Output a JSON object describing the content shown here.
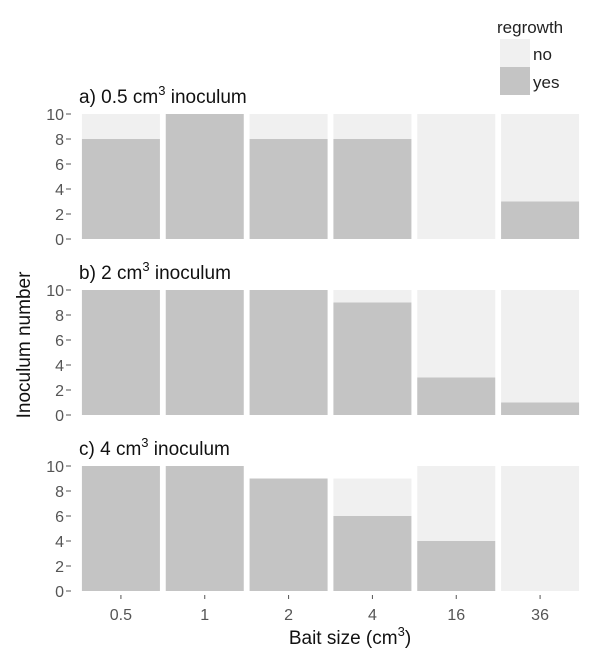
{
  "chart_data": {
    "type": "bar",
    "stacked": true,
    "xlabel_main": "Bait size (cm",
    "xlabel_sup": "3",
    "xlabel_end": ")",
    "ylabel": "Inoculum number",
    "categories": [
      "0.5",
      "1",
      "2",
      "4",
      "16",
      "36"
    ],
    "ylim": [
      0,
      10
    ],
    "yticks": [
      "0",
      "2",
      "4",
      "6",
      "8",
      "10"
    ],
    "legend": {
      "title": "regrowth",
      "position": "top-right",
      "entries": [
        {
          "label": "no",
          "color": "#f0f0f0"
        },
        {
          "label": "yes",
          "color": "#c4c4c4"
        }
      ]
    },
    "panels": [
      {
        "title_pre": "a) 0.5 cm",
        "title_sup": "3",
        "title_post": " inoculum",
        "series": [
          {
            "name": "yes",
            "values": [
              8,
              10,
              8,
              8,
              0,
              3
            ]
          },
          {
            "name": "no",
            "values": [
              2,
              0,
              2,
              2,
              10,
              7
            ]
          }
        ]
      },
      {
        "title_pre": "b) 2 cm",
        "title_sup": "3",
        "title_post": " inoculum",
        "series": [
          {
            "name": "yes",
            "values": [
              10,
              10,
              10,
              9,
              3,
              1
            ]
          },
          {
            "name": "no",
            "values": [
              0,
              0,
              0,
              1,
              7,
              9
            ]
          }
        ]
      },
      {
        "title_pre": "c) 4 cm",
        "title_sup": "3",
        "title_post": " inoculum",
        "series": [
          {
            "name": "yes",
            "values": [
              10,
              10,
              9,
              6,
              4,
              0
            ]
          },
          {
            "name": "no",
            "values": [
              0,
              0,
              0,
              3,
              6,
              10
            ]
          }
        ]
      }
    ]
  }
}
